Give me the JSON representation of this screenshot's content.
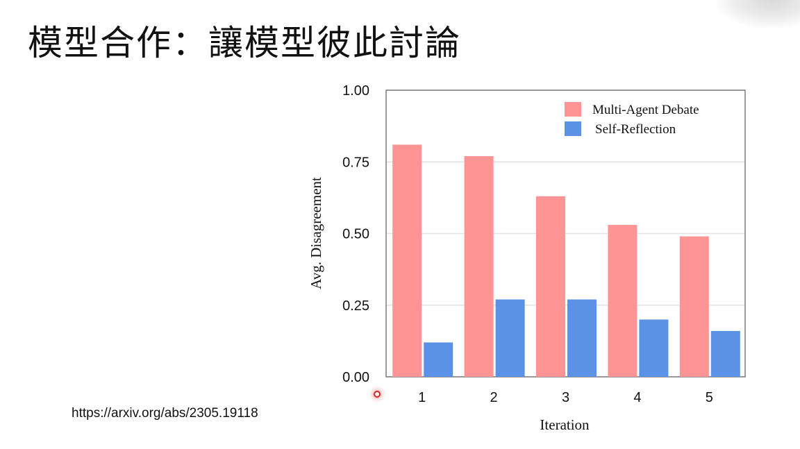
{
  "slide": {
    "title": "模型合作：讓模型彼此討論",
    "source": "https://arxiv.org/abs/2305.19118"
  },
  "chart_data": {
    "type": "bar",
    "categories": [
      "1",
      "2",
      "3",
      "4",
      "5"
    ],
    "series": [
      {
        "name": "Multi-Agent Debate",
        "color": "#ff9494",
        "values": [
          0.81,
          0.77,
          0.63,
          0.53,
          0.49
        ]
      },
      {
        "name": "Self-Reflection",
        "color": "#5b92e5",
        "values": [
          0.12,
          0.27,
          0.27,
          0.2,
          0.16
        ]
      }
    ],
    "xlabel": "Iteration",
    "ylabel": "Avg. Disagreement",
    "ylim": [
      0,
      1
    ],
    "yticks": [
      "0.00",
      "0.25",
      "0.50",
      "0.75",
      "1.00"
    ],
    "grid": true,
    "legend_position": "top-right"
  }
}
